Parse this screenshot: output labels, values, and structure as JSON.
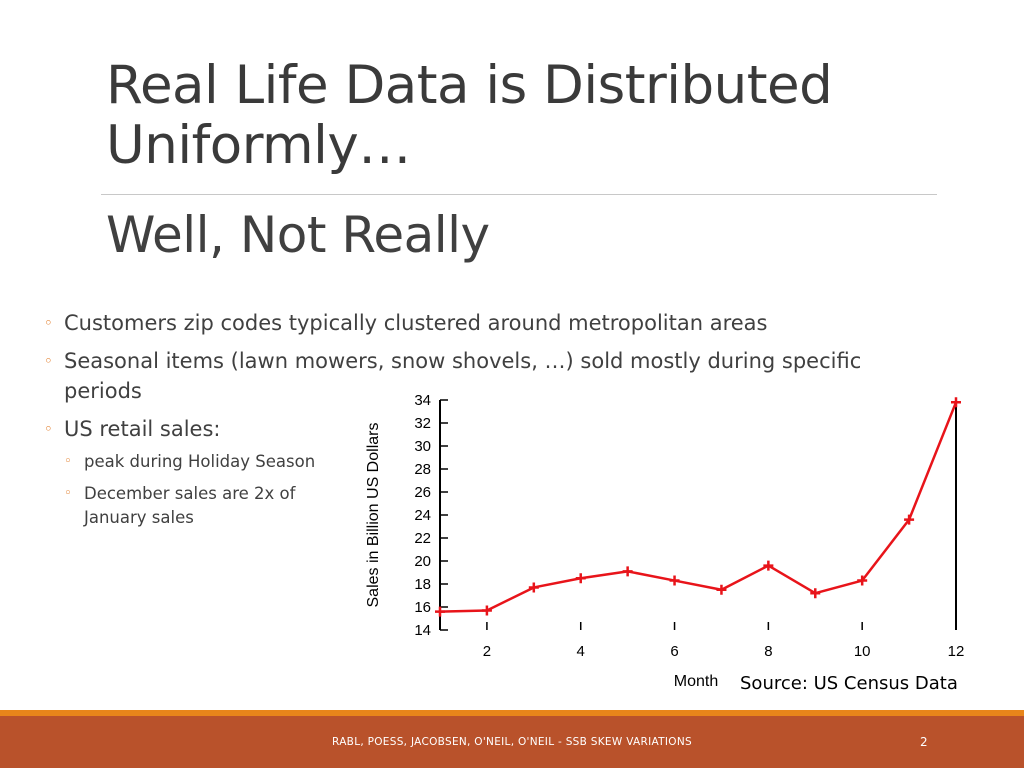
{
  "slide": {
    "title": "Real Life Data is Distributed Uniformly…",
    "subtitle": "Well, Not Really",
    "bullets": [
      "Customers zip codes typically clustered around metropolitan areas",
      "Seasonal items (lawn mowers, snow shovels, …) sold mostly during specific periods",
      "US retail sales:"
    ],
    "sub_bullets": [
      "peak during Holiday Season",
      "December sales are 2x of January sales"
    ],
    "source": "Source: US Census Data",
    "footer": "RABL, POESS, JACOBSEN, O'NEIL, O'NEIL - SSB SKEW VARIATIONS",
    "page_number": "2",
    "colors": {
      "accent": "#e8851a",
      "footer_bg": "#b9522b",
      "series": "#e8141a"
    }
  },
  "chart_data": {
    "type": "line",
    "xlabel": "Month",
    "ylabel": "Sales in Billion US Dollars",
    "xlim": [
      1,
      12
    ],
    "ylim": [
      14,
      34
    ],
    "x_ticks": [
      2,
      4,
      6,
      8,
      10,
      12
    ],
    "y_ticks": [
      14,
      16,
      18,
      20,
      22,
      24,
      26,
      28,
      30,
      32,
      34
    ],
    "x": [
      1,
      2,
      3,
      4,
      5,
      6,
      7,
      8,
      9,
      10,
      11,
      12
    ],
    "values": [
      15.6,
      15.7,
      17.7,
      18.5,
      19.1,
      18.3,
      17.5,
      19.6,
      17.2,
      18.3,
      23.6,
      33.8
    ],
    "marker": "plus",
    "grid": false
  }
}
